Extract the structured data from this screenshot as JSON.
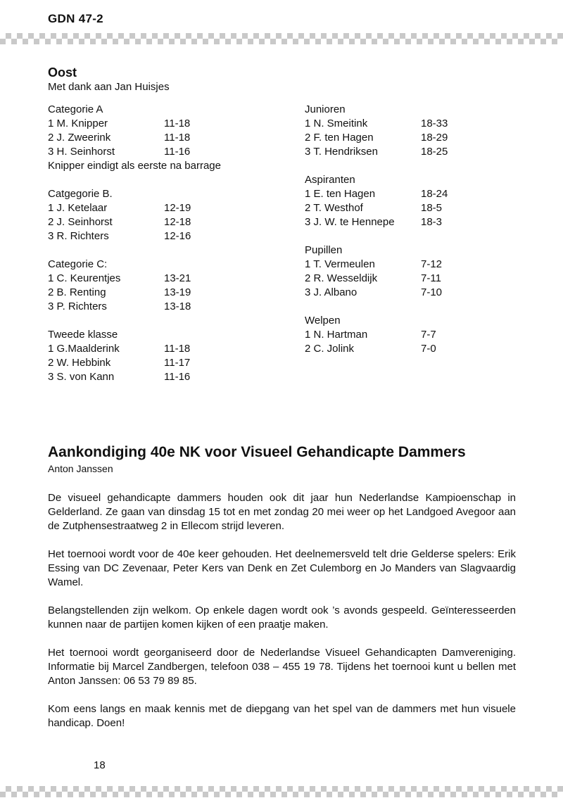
{
  "header": {
    "title": "GDN 47-2"
  },
  "decor": {
    "checker_color": "#c9c9c9",
    "background_color": "#ffffff",
    "text_color": "#111111"
  },
  "oost": {
    "title": "Oost",
    "credit": "Met dank aan Jan Huisjes",
    "left_groups": [
      {
        "heading": "Categorie A",
        "rows": [
          [
            "1 M. Knipper",
            "11-18"
          ],
          [
            "2 J. Zweerink",
            "11-18"
          ],
          [
            "3 H. Seinhorst",
            "11-16"
          ]
        ],
        "note": "Knipper eindigt als eerste na barrage"
      },
      {
        "heading": "Catgegorie B.",
        "rows": [
          [
            "1 J. Ketelaar",
            "12-19"
          ],
          [
            "2 J. Seinhorst",
            "12-18"
          ],
          [
            "3 R. Richters",
            "12-16"
          ]
        ]
      },
      {
        "heading": "Categorie C:",
        "rows": [
          [
            "1 C. Keurentjes",
            "13-21"
          ],
          [
            "2 B. Renting",
            "13-19"
          ],
          [
            "3 P. Richters",
            "13-18"
          ]
        ]
      },
      {
        "heading": "Tweede klasse",
        "rows": [
          [
            "1 G.Maalderink",
            "11-18"
          ],
          [
            "2 W. Hebbink",
            "11-17"
          ],
          [
            "3 S. von Kann",
            "11-16"
          ]
        ]
      }
    ],
    "right_groups": [
      {
        "heading": "Junioren",
        "rows": [
          [
            "1 N. Smeitink",
            "18-33"
          ],
          [
            "2 F. ten Hagen",
            "18-29"
          ],
          [
            "3 T. Hendriksen",
            "18-25"
          ]
        ]
      },
      {
        "heading": "Aspiranten",
        "rows": [
          [
            "1 E. ten Hagen",
            "18-24"
          ],
          [
            "2 T. Westhof",
            "18-5"
          ],
          [
            "3 J. W. te Hennepe",
            "18-3"
          ]
        ]
      },
      {
        "heading": "Pupillen",
        "rows": [
          [
            "1 T. Vermeulen",
            "7-12"
          ],
          [
            "2 R. Wesseldijk",
            "7-11"
          ],
          [
            "3 J. Albano",
            "7-10"
          ]
        ]
      },
      {
        "heading": "Welpen",
        "rows": [
          [
            "1 N. Hartman",
            "7-7"
          ],
          [
            "2 C. Jolink",
            "7-0"
          ]
        ]
      }
    ]
  },
  "article": {
    "title": "Aankondiging 40e NK voor Visueel Gehandicapte Dammers",
    "byline": "Anton Janssen",
    "paragraphs": [
      "De visueel gehandicapte dammers houden ook dit jaar hun Nederlandse Kampioenschap in Gelderland. Ze gaan van dinsdag 15 tot en met zondag 20 mei weer op het Landgoed Avegoor aan de Zutphensestraatweg 2 in Ellecom strijd leveren.",
      "Het toernooi wordt voor de 40e keer gehouden. Het deelnemersveld telt drie Gelderse spelers: Erik Essing van DC Zevenaar, Peter Kers van Denk en Zet Culemborg en Jo Manders van Slagvaardig Wamel.",
      "Belangstellenden zijn welkom. Op enkele dagen wordt ook ’s avonds gespeeld. Geïnteresseerden kunnen naar de partijen komen kijken of een praatje maken.",
      "Het toernooi wordt georganiseerd door de Nederlandse Visueel Gehandicapten Damvereniging. Informatie bij Marcel Zandbergen, telefoon 038 – 455 19 78. Tijdens het toernooi kunt u bellen met Anton Janssen: 06 53 79 89 85.",
      "Kom eens langs en maak kennis met de diepgang van het spel van de dammers met hun visuele handicap. Doen!"
    ]
  },
  "footer": {
    "page_number": "18"
  }
}
